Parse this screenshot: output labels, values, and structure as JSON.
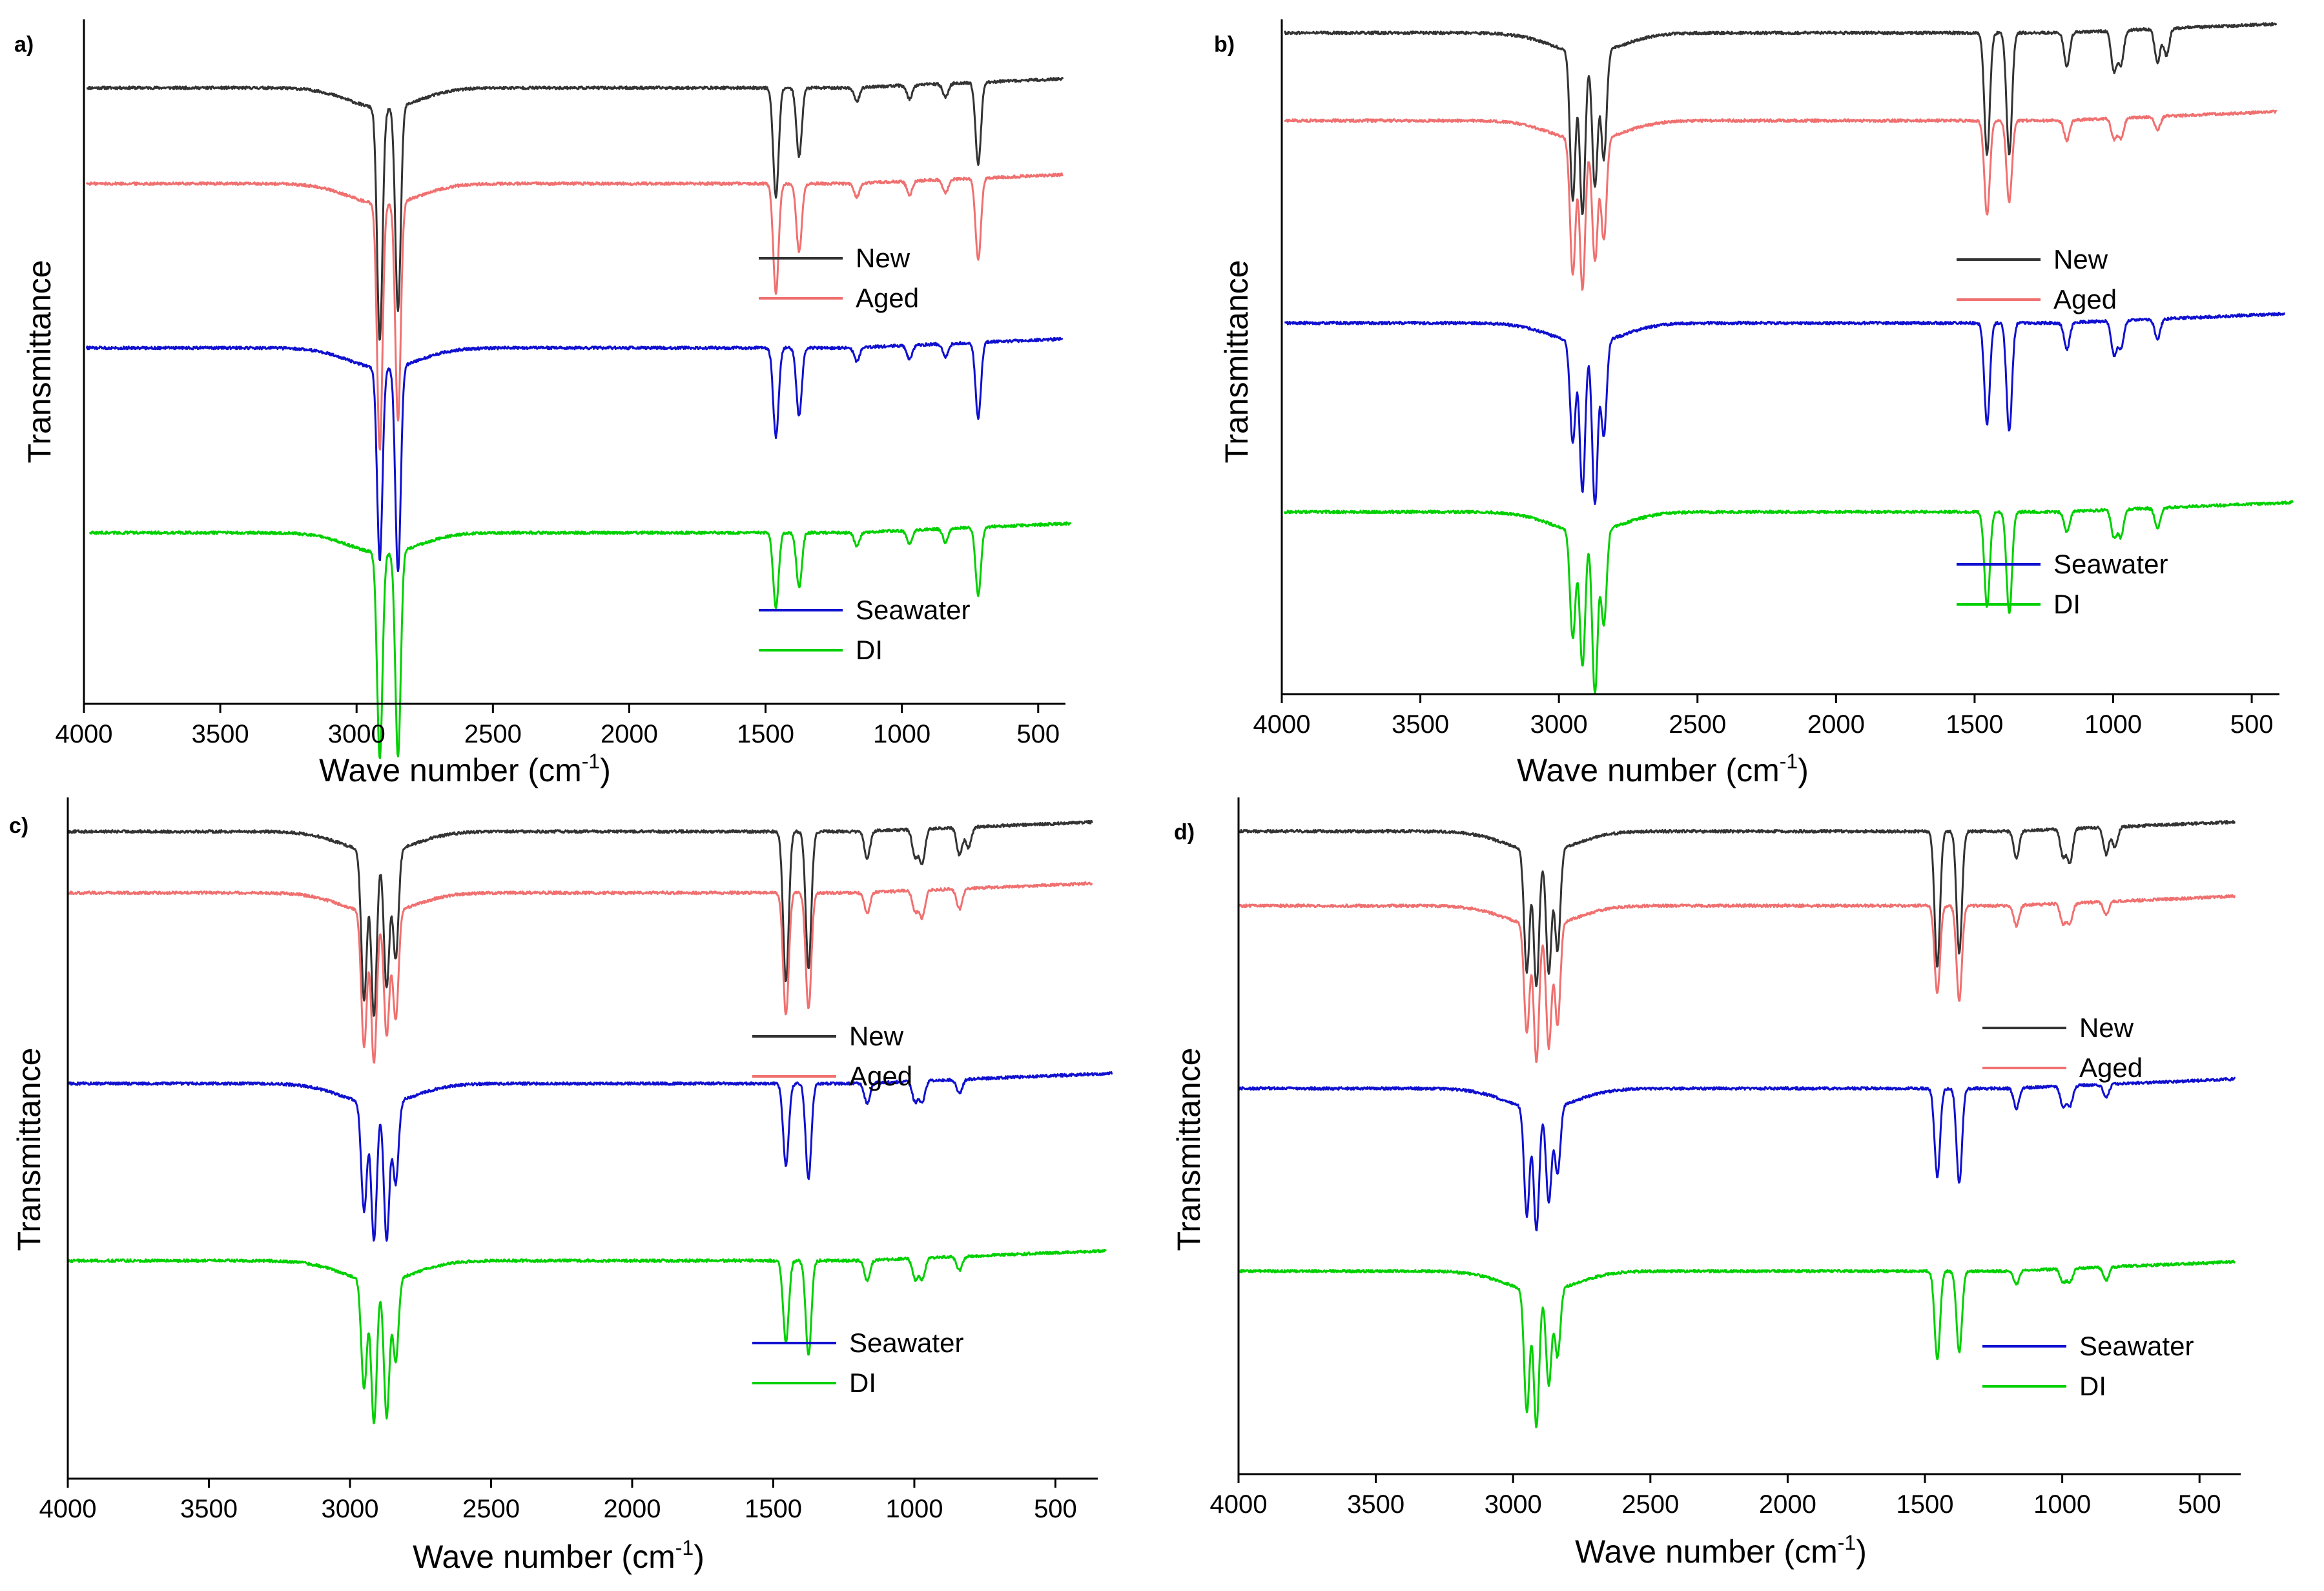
{
  "figure": {
    "description_free": true,
    "colors": {
      "New": "#333333",
      "Aged": "#f07070",
      "Seawater": "#1010d0",
      "DI": "#00d000"
    }
  },
  "chart_data": [
    {
      "type": "line",
      "panel_label": "a)",
      "xlabel": "Wave number (cm",
      "xlabel_sup": "-1",
      "xlabel_close": ")",
      "ylabel": "Transmittance",
      "xlim": [
        4000,
        400
      ],
      "x_reversed": true,
      "xticks": [
        4000,
        3500,
        3000,
        2500,
        2000,
        1500,
        1000,
        500
      ],
      "legend_groups": [
        [
          "New",
          "Aged"
        ],
        [
          "Seawater",
          "DI"
        ]
      ],
      "series": [
        {
          "name": "New",
          "color": "#333333",
          "x_start": 3990,
          "x_end": 410,
          "y_offset": 0.9,
          "peaks": [
            [
              2915,
              0.34
            ],
            [
              2848,
              0.3
            ],
            [
              1462,
              0.16
            ],
            [
              1377,
              0.1
            ],
            [
              1165,
              0.02
            ],
            [
              972,
              0.02
            ],
            [
              840,
              0.02
            ],
            [
              720,
              0.12
            ]
          ]
        },
        {
          "name": "Aged",
          "color": "#f07070",
          "x_start": 3990,
          "x_end": 410,
          "y_offset": 0.76,
          "peaks": [
            [
              2915,
              0.36
            ],
            [
              2848,
              0.32
            ],
            [
              1462,
              0.16
            ],
            [
              1377,
              0.1
            ],
            [
              1165,
              0.02
            ],
            [
              972,
              0.02
            ],
            [
              840,
              0.02
            ],
            [
              720,
              0.12
            ]
          ]
        },
        {
          "name": "Seawater",
          "color": "#1010d0",
          "x_start": 3990,
          "x_end": 410,
          "y_offset": 0.52,
          "peaks": [
            [
              2915,
              0.28
            ],
            [
              2848,
              0.3
            ],
            [
              1462,
              0.13
            ],
            [
              1377,
              0.1
            ],
            [
              1165,
              0.02
            ],
            [
              972,
              0.02
            ],
            [
              840,
              0.02
            ],
            [
              720,
              0.11
            ]
          ]
        },
        {
          "name": "DI",
          "color": "#00d000",
          "x_start": 3980,
          "x_end": 380,
          "y_offset": 0.25,
          "peaks": [
            [
              2915,
              0.3
            ],
            [
              2848,
              0.3
            ],
            [
              1462,
              0.11
            ],
            [
              1377,
              0.08
            ],
            [
              1165,
              0.02
            ],
            [
              972,
              0.02
            ],
            [
              840,
              0.02
            ],
            [
              720,
              0.1
            ]
          ]
        }
      ]
    },
    {
      "type": "line",
      "panel_label": "b)",
      "xlabel": "Wave number (cm",
      "xlabel_sup": "-1",
      "xlabel_close": ")",
      "ylabel": "Transmittance",
      "xlim": [
        4000,
        400
      ],
      "x_reversed": true,
      "xticks": [
        4000,
        3500,
        3000,
        2500,
        2000,
        1500,
        1000,
        500
      ],
      "legend_groups": [
        [
          "New",
          "Aged"
        ],
        [
          "Seawater",
          "DI"
        ]
      ],
      "series": [
        {
          "name": "New",
          "color": "#333333",
          "x_start": 3990,
          "x_end": 410,
          "y_offset": 0.98,
          "peaks": [
            [
              2950,
              0.22
            ],
            [
              2915,
              0.24
            ],
            [
              2870,
              0.2
            ],
            [
              2838,
              0.16
            ],
            [
              1455,
              0.18
            ],
            [
              1375,
              0.18
            ],
            [
              1167,
              0.05
            ],
            [
              997,
              0.06
            ],
            [
              972,
              0.05
            ],
            [
              840,
              0.05
            ],
            [
              808,
              0.04
            ]
          ]
        },
        {
          "name": "Aged",
          "color": "#f07070",
          "x_start": 3990,
          "x_end": 410,
          "y_offset": 0.85,
          "peaks": [
            [
              2950,
              0.2
            ],
            [
              2915,
              0.22
            ],
            [
              2870,
              0.18
            ],
            [
              2838,
              0.15
            ],
            [
              1455,
              0.14
            ],
            [
              1375,
              0.12
            ],
            [
              1167,
              0.03
            ],
            [
              997,
              0.03
            ],
            [
              972,
              0.03
            ],
            [
              840,
              0.02
            ]
          ]
        },
        {
          "name": "Seawater",
          "color": "#1010d0",
          "x_start": 3990,
          "x_end": 380,
          "y_offset": 0.55,
          "peaks": [
            [
              2950,
              0.15
            ],
            [
              2915,
              0.22
            ],
            [
              2870,
              0.24
            ],
            [
              2838,
              0.14
            ],
            [
              1455,
              0.15
            ],
            [
              1375,
              0.16
            ],
            [
              1167,
              0.04
            ],
            [
              997,
              0.05
            ],
            [
              972,
              0.04
            ],
            [
              840,
              0.03
            ]
          ]
        },
        {
          "name": "DI",
          "color": "#00d000",
          "x_start": 3990,
          "x_end": 350,
          "y_offset": 0.27,
          "peaks": [
            [
              2950,
              0.16
            ],
            [
              2915,
              0.2
            ],
            [
              2870,
              0.24
            ],
            [
              2838,
              0.14
            ],
            [
              1455,
              0.14
            ],
            [
              1375,
              0.15
            ],
            [
              1167,
              0.03
            ],
            [
              997,
              0.04
            ],
            [
              972,
              0.04
            ],
            [
              840,
              0.03
            ]
          ]
        }
      ]
    },
    {
      "type": "line",
      "panel_label": "c)",
      "xlabel": "Wave number (cm",
      "xlabel_sup": "-1",
      "xlabel_close": ")",
      "ylabel": "Transmittance",
      "xlim": [
        4000,
        350
      ],
      "x_reversed": true,
      "xticks": [
        4000,
        3500,
        3000,
        2500,
        2000,
        1500,
        1000,
        500
      ],
      "legend_groups": [
        [
          "New",
          "Aged"
        ],
        [
          "Seawater",
          "DI"
        ]
      ],
      "series": [
        {
          "name": "New",
          "color": "#333333",
          "x_start": 4000,
          "x_end": 370,
          "y_offset": 0.95,
          "peaks": [
            [
              2950,
              0.22
            ],
            [
              2915,
              0.24
            ],
            [
              2870,
              0.2
            ],
            [
              2838,
              0.16
            ],
            [
              1455,
              0.22
            ],
            [
              1375,
              0.2
            ],
            [
              1167,
              0.04
            ],
            [
              997,
              0.04
            ],
            [
              972,
              0.05
            ],
            [
              840,
              0.04
            ],
            [
              808,
              0.03
            ]
          ]
        },
        {
          "name": "Aged",
          "color": "#f07070",
          "x_start": 4000,
          "x_end": 370,
          "y_offset": 0.86,
          "peaks": [
            [
              2950,
              0.2
            ],
            [
              2915,
              0.22
            ],
            [
              2870,
              0.18
            ],
            [
              2838,
              0.16
            ],
            [
              1455,
              0.18
            ],
            [
              1375,
              0.17
            ],
            [
              1167,
              0.03
            ],
            [
              997,
              0.03
            ],
            [
              972,
              0.04
            ],
            [
              840,
              0.03
            ]
          ]
        },
        {
          "name": "Seawater",
          "color": "#1010d0",
          "x_start": 4000,
          "x_end": 300,
          "y_offset": 0.58,
          "peaks": [
            [
              2950,
              0.16
            ],
            [
              2915,
              0.2
            ],
            [
              2870,
              0.2
            ],
            [
              2838,
              0.12
            ],
            [
              1455,
              0.12
            ],
            [
              1375,
              0.14
            ],
            [
              1167,
              0.03
            ],
            [
              997,
              0.03
            ],
            [
              972,
              0.03
            ],
            [
              840,
              0.02
            ]
          ]
        },
        {
          "name": "DI",
          "color": "#00d000",
          "x_start": 4000,
          "x_end": 320,
          "y_offset": 0.32,
          "peaks": [
            [
              2950,
              0.16
            ],
            [
              2915,
              0.21
            ],
            [
              2870,
              0.2
            ],
            [
              2838,
              0.12
            ],
            [
              1455,
              0.12
            ],
            [
              1375,
              0.14
            ],
            [
              1167,
              0.03
            ],
            [
              997,
              0.03
            ],
            [
              972,
              0.03
            ],
            [
              840,
              0.02
            ]
          ]
        }
      ]
    },
    {
      "type": "line",
      "panel_label": "d)",
      "xlabel": "Wave number (cm",
      "xlabel_sup": "-1",
      "xlabel_close": ")",
      "ylabel": "Transmittance",
      "xlim": [
        4000,
        350
      ],
      "x_reversed": true,
      "xticks": [
        4000,
        3500,
        3000,
        2500,
        2000,
        1500,
        1000,
        500
      ],
      "legend_groups": [
        [
          "New",
          "Aged"
        ],
        [
          "Seawater",
          "DI"
        ]
      ],
      "series": [
        {
          "name": "New",
          "color": "#333333",
          "x_start": 4000,
          "x_end": 370,
          "y_offset": 0.95,
          "peaks": [
            [
              2950,
              0.18
            ],
            [
              2915,
              0.2
            ],
            [
              2870,
              0.18
            ],
            [
              2838,
              0.15
            ],
            [
              1455,
              0.2
            ],
            [
              1375,
              0.18
            ],
            [
              1167,
              0.04
            ],
            [
              997,
              0.04
            ],
            [
              972,
              0.05
            ],
            [
              840,
              0.04
            ],
            [
              808,
              0.03
            ]
          ]
        },
        {
          "name": "Aged",
          "color": "#f07070",
          "x_start": 4000,
          "x_end": 370,
          "y_offset": 0.84,
          "peaks": [
            [
              2950,
              0.16
            ],
            [
              2915,
              0.2
            ],
            [
              2870,
              0.18
            ],
            [
              2838,
              0.15
            ],
            [
              1455,
              0.13
            ],
            [
              1375,
              0.14
            ],
            [
              1167,
              0.03
            ],
            [
              997,
              0.03
            ],
            [
              972,
              0.03
            ],
            [
              840,
              0.02
            ]
          ]
        },
        {
          "name": "Seawater",
          "color": "#1010d0",
          "x_start": 4000,
          "x_end": 370,
          "y_offset": 0.57,
          "peaks": [
            [
              2950,
              0.16
            ],
            [
              2915,
              0.18
            ],
            [
              2870,
              0.14
            ],
            [
              2838,
              0.1
            ],
            [
              1455,
              0.13
            ],
            [
              1375,
              0.14
            ],
            [
              1167,
              0.03
            ],
            [
              997,
              0.03
            ],
            [
              972,
              0.03
            ],
            [
              840,
              0.02
            ]
          ]
        },
        {
          "name": "DI",
          "color": "#00d000",
          "x_start": 4000,
          "x_end": 370,
          "y_offset": 0.3,
          "peaks": [
            [
              2950,
              0.18
            ],
            [
              2915,
              0.2
            ],
            [
              2870,
              0.14
            ],
            [
              2838,
              0.1
            ],
            [
              1455,
              0.13
            ],
            [
              1375,
              0.12
            ],
            [
              1167,
              0.02
            ],
            [
              997,
              0.02
            ],
            [
              972,
              0.02
            ],
            [
              840,
              0.02
            ]
          ]
        }
      ]
    }
  ]
}
